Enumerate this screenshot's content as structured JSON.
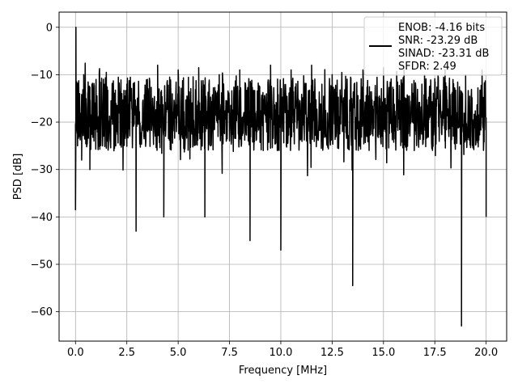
{
  "chart_data": {
    "type": "line",
    "xlabel": "Frequency [MHz]",
    "ylabel": "PSD [dB]",
    "xlim": [
      -0.8,
      21.0
    ],
    "ylim": [
      -66.2,
      3.2
    ],
    "xticks": [
      0.0,
      2.5,
      5.0,
      7.5,
      10.0,
      12.5,
      15.0,
      17.5,
      20.0
    ],
    "xtick_labels": [
      "0.0",
      "2.5",
      "5.0",
      "7.5",
      "10.0",
      "12.5",
      "15.0",
      "17.5",
      "20.0"
    ],
    "yticks": [
      0,
      -10,
      -20,
      -30,
      -40,
      -50,
      -60
    ],
    "ytick_labels": [
      "0",
      "−10",
      "−20",
      "−30",
      "−40",
      "−50",
      "−60"
    ],
    "grid": true,
    "legend_position": "top-right",
    "series": [
      {
        "name": "ENOB: -4.16 bits\nSNR: -23.29 dB\nSINAD: -23.31 dB\nSFDR: 2.49",
        "color": "#000000",
        "x": [
          0.0,
          0.02,
          0.04,
          0.1,
          0.2,
          0.3,
          0.4,
          0.5,
          0.6,
          0.7,
          0.8,
          0.9,
          1.0,
          1.2,
          1.5,
          2.0,
          2.5,
          2.95,
          3.0,
          3.5,
          3.8,
          4.0,
          4.3,
          4.5,
          5.0,
          5.5,
          6.0,
          6.3,
          6.5,
          7.0,
          7.5,
          8.0,
          8.5,
          8.55,
          9.0,
          9.5,
          10.0,
          10.05,
          10.5,
          11.0,
          11.5,
          12.0,
          12.5,
          13.0,
          13.5,
          13.55,
          14.0,
          14.5,
          15.0,
          15.5,
          16.0,
          16.5,
          17.0,
          17.5,
          18.0,
          18.5,
          18.8,
          18.85,
          19.0,
          19.5,
          19.8,
          20.0
        ],
        "y": [
          -38.5,
          0.0,
          -12,
          -25,
          -14,
          -28,
          -10,
          -22,
          -18,
          -30,
          -12,
          -24,
          -11,
          -20,
          -9.5,
          -22,
          -12,
          -43,
          -18,
          -11,
          -24,
          -8,
          -40,
          -14,
          -9,
          -22,
          -8.5,
          -40,
          -12,
          -10,
          -24,
          -9,
          -45,
          -12,
          -22,
          -8,
          -47,
          -15,
          -9,
          -21,
          -8,
          -12,
          -10,
          -22,
          -54.5,
          -14,
          -9,
          -20,
          -8.5,
          -18,
          -9,
          -26,
          -10,
          -21,
          -9,
          -24,
          -63,
          -14,
          -10,
          -19,
          -9,
          -40
        ],
        "band_upper": -10.5,
        "band_lower": -26
      }
    ]
  }
}
